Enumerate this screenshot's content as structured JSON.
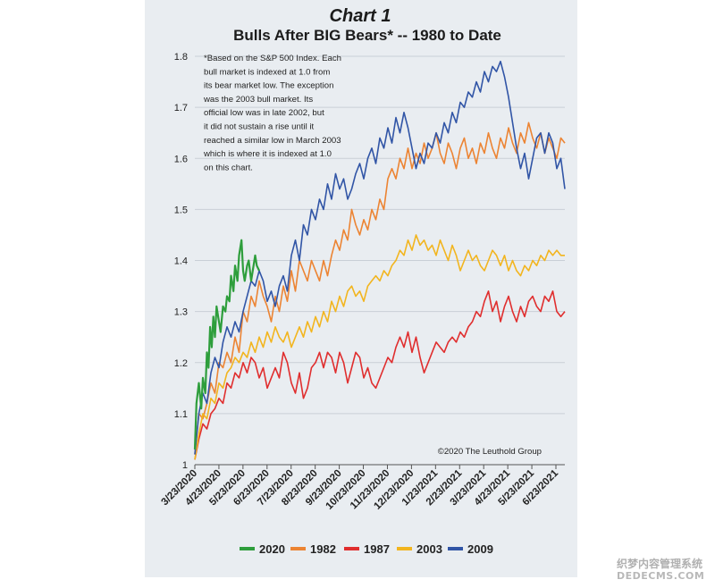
{
  "chart_data": {
    "type": "line",
    "title": "Chart 1",
    "subtitle": "Bulls After BIG Bears* -- 1980 to Date",
    "ylim": [
      1,
      1.8
    ],
    "yticks": [
      "1",
      "1.1",
      "1.2",
      "1.3",
      "1.4",
      "1.5",
      "1.6",
      "1.7",
      "1.8"
    ],
    "x_ticks": [
      "3/23/2020",
      "4/23/2020",
      "5/23/2020",
      "6/23/2020",
      "7/23/2020",
      "8/23/2020",
      "9/23/2020",
      "10/23/2020",
      "11/23/2020",
      "12/23/2020",
      "1/23/2021",
      "2/23/2021",
      "3/23/2021",
      "4/23/2021",
      "5/23/2021",
      "6/23/2021"
    ],
    "grid": "horizontal",
    "legend_position": "bottom",
    "footnote": "*Based on the S&P 500 Index. Each bull market is indexed at 1.0 from its bear market low. The exception was the 2003 bull market. Its official low was in late 2002, but it did not sustain a rise until it reached a similar low in March 2003 which is where it is indexed at 1.0 on this chart.",
    "copyright": "©2020 The Leuthold Group",
    "series": [
      {
        "name": "2020",
        "color": "#2e9e3c",
        "x": [
          0,
          2,
          5,
          8,
          10,
          13,
          15,
          17,
          19,
          21,
          23,
          25,
          27,
          30,
          32,
          35,
          38,
          40,
          43,
          45,
          48,
          50,
          53,
          55,
          58,
          60,
          62,
          65,
          67,
          70,
          72,
          75,
          77,
          80
        ],
        "values": [
          1.03,
          1.12,
          1.16,
          1.11,
          1.17,
          1.14,
          1.22,
          1.19,
          1.27,
          1.23,
          1.29,
          1.25,
          1.31,
          1.28,
          1.26,
          1.31,
          1.3,
          1.33,
          1.32,
          1.37,
          1.34,
          1.39,
          1.36,
          1.41,
          1.44,
          1.38,
          1.36,
          1.39,
          1.4,
          1.36,
          1.38,
          1.41,
          1.39,
          1.38
        ]
      },
      {
        "name": "1982",
        "color": "#ec8433",
        "x": [
          0,
          5,
          10,
          15,
          20,
          25,
          30,
          35,
          40,
          45,
          50,
          55,
          60,
          65,
          70,
          75,
          80,
          85,
          90,
          95,
          100,
          105,
          110,
          115,
          120,
          125,
          130,
          135,
          140,
          145,
          150,
          155,
          160,
          165,
          170,
          175,
          180,
          185,
          190,
          195,
          200,
          205,
          210,
          215,
          220,
          225,
          230,
          235,
          240,
          245,
          250,
          255,
          260,
          265,
          270,
          275,
          280,
          285,
          290,
          295,
          300,
          305,
          310,
          315,
          320,
          325,
          330,
          335,
          340,
          345,
          350,
          355,
          360,
          365,
          370,
          375,
          380,
          385,
          390,
          395,
          400,
          405,
          410,
          415,
          420,
          425,
          430,
          435,
          440,
          445,
          450,
          455,
          460
        ],
        "values": [
          1.02,
          1.1,
          1.09,
          1.12,
          1.16,
          1.14,
          1.2,
          1.19,
          1.22,
          1.2,
          1.25,
          1.22,
          1.3,
          1.28,
          1.33,
          1.31,
          1.36,
          1.33,
          1.31,
          1.28,
          1.33,
          1.3,
          1.35,
          1.32,
          1.38,
          1.34,
          1.4,
          1.38,
          1.36,
          1.4,
          1.38,
          1.36,
          1.4,
          1.37,
          1.41,
          1.44,
          1.42,
          1.46,
          1.44,
          1.5,
          1.47,
          1.45,
          1.48,
          1.46,
          1.5,
          1.48,
          1.52,
          1.5,
          1.56,
          1.58,
          1.56,
          1.6,
          1.58,
          1.62,
          1.58,
          1.61,
          1.59,
          1.63,
          1.6,
          1.62,
          1.65,
          1.61,
          1.59,
          1.63,
          1.61,
          1.58,
          1.62,
          1.64,
          1.6,
          1.62,
          1.59,
          1.63,
          1.61,
          1.65,
          1.62,
          1.6,
          1.64,
          1.62,
          1.66,
          1.63,
          1.61,
          1.65,
          1.63,
          1.67,
          1.64,
          1.62,
          1.65,
          1.61,
          1.64,
          1.62,
          1.6,
          1.64,
          1.63
        ]
      },
      {
        "name": "1987",
        "color": "#e02e2e",
        "x": [
          0,
          5,
          10,
          15,
          20,
          25,
          30,
          35,
          40,
          45,
          50,
          55,
          60,
          65,
          70,
          75,
          80,
          85,
          90,
          95,
          100,
          105,
          110,
          115,
          120,
          125,
          130,
          135,
          140,
          145,
          150,
          155,
          160,
          165,
          170,
          175,
          180,
          185,
          190,
          195,
          200,
          205,
          210,
          215,
          220,
          225,
          230,
          235,
          240,
          245,
          250,
          255,
          260,
          265,
          270,
          275,
          280,
          285,
          290,
          295,
          300,
          305,
          310,
          315,
          320,
          325,
          330,
          335,
          340,
          345,
          350,
          355,
          360,
          365,
          370,
          375,
          380,
          385,
          390,
          395,
          400,
          405,
          410,
          415,
          420,
          425,
          430,
          435,
          440,
          445,
          450,
          455,
          460
        ],
        "values": [
          1.01,
          1.05,
          1.08,
          1.07,
          1.1,
          1.11,
          1.13,
          1.12,
          1.16,
          1.15,
          1.18,
          1.17,
          1.2,
          1.18,
          1.21,
          1.2,
          1.17,
          1.19,
          1.15,
          1.17,
          1.19,
          1.17,
          1.22,
          1.2,
          1.16,
          1.14,
          1.18,
          1.13,
          1.15,
          1.19,
          1.2,
          1.22,
          1.19,
          1.22,
          1.21,
          1.18,
          1.22,
          1.2,
          1.16,
          1.19,
          1.22,
          1.21,
          1.17,
          1.19,
          1.16,
          1.15,
          1.17,
          1.19,
          1.21,
          1.2,
          1.23,
          1.25,
          1.23,
          1.26,
          1.22,
          1.25,
          1.21,
          1.18,
          1.2,
          1.22,
          1.24,
          1.23,
          1.22,
          1.24,
          1.25,
          1.24,
          1.26,
          1.25,
          1.27,
          1.28,
          1.3,
          1.29,
          1.32,
          1.34,
          1.3,
          1.32,
          1.28,
          1.31,
          1.33,
          1.3,
          1.28,
          1.31,
          1.29,
          1.32,
          1.33,
          1.31,
          1.3,
          1.33,
          1.32,
          1.34,
          1.3,
          1.29,
          1.3
        ]
      },
      {
        "name": "2003",
        "color": "#f2b51f",
        "x": [
          0,
          5,
          10,
          15,
          20,
          25,
          30,
          35,
          40,
          45,
          50,
          55,
          60,
          65,
          70,
          75,
          80,
          85,
          90,
          95,
          100,
          105,
          110,
          115,
          120,
          125,
          130,
          135,
          140,
          145,
          150,
          155,
          160,
          165,
          170,
          175,
          180,
          185,
          190,
          195,
          200,
          205,
          210,
          215,
          220,
          225,
          230,
          235,
          240,
          245,
          250,
          255,
          260,
          265,
          270,
          275,
          280,
          285,
          290,
          295,
          300,
          305,
          310,
          315,
          320,
          325,
          330,
          335,
          340,
          345,
          350,
          355,
          360,
          365,
          370,
          375,
          380,
          385,
          390,
          395,
          400,
          405,
          410,
          415,
          420,
          425,
          430,
          435,
          440,
          445,
          450,
          455,
          460
        ],
        "values": [
          1.01,
          1.06,
          1.1,
          1.09,
          1.13,
          1.12,
          1.16,
          1.15,
          1.18,
          1.19,
          1.21,
          1.2,
          1.22,
          1.21,
          1.24,
          1.22,
          1.25,
          1.23,
          1.26,
          1.24,
          1.27,
          1.25,
          1.24,
          1.26,
          1.23,
          1.25,
          1.27,
          1.25,
          1.28,
          1.26,
          1.29,
          1.27,
          1.3,
          1.28,
          1.32,
          1.3,
          1.33,
          1.31,
          1.34,
          1.35,
          1.33,
          1.34,
          1.32,
          1.35,
          1.36,
          1.37,
          1.36,
          1.38,
          1.37,
          1.39,
          1.4,
          1.42,
          1.41,
          1.44,
          1.42,
          1.45,
          1.43,
          1.44,
          1.42,
          1.43,
          1.41,
          1.44,
          1.42,
          1.4,
          1.43,
          1.41,
          1.38,
          1.4,
          1.42,
          1.4,
          1.41,
          1.39,
          1.38,
          1.4,
          1.42,
          1.41,
          1.39,
          1.41,
          1.38,
          1.4,
          1.38,
          1.37,
          1.39,
          1.38,
          1.4,
          1.39,
          1.41,
          1.4,
          1.42,
          1.41,
          1.42,
          1.41,
          1.41
        ]
      },
      {
        "name": "2009",
        "color": "#3155a6",
        "x": [
          0,
          5,
          10,
          15,
          20,
          25,
          30,
          35,
          40,
          45,
          50,
          55,
          60,
          65,
          70,
          75,
          80,
          85,
          90,
          95,
          100,
          105,
          110,
          115,
          120,
          125,
          130,
          135,
          140,
          145,
          150,
          155,
          160,
          165,
          170,
          175,
          180,
          185,
          190,
          195,
          200,
          205,
          210,
          215,
          220,
          225,
          230,
          235,
          240,
          245,
          250,
          255,
          260,
          265,
          270,
          275,
          280,
          285,
          290,
          295,
          300,
          305,
          310,
          315,
          320,
          325,
          330,
          335,
          340,
          345,
          350,
          355,
          360,
          365,
          370,
          375,
          380,
          385,
          390,
          395,
          400,
          405,
          410,
          415,
          420,
          425,
          430,
          435,
          440,
          445,
          450,
          455,
          460
        ],
        "values": [
          1.02,
          1.1,
          1.14,
          1.12,
          1.18,
          1.21,
          1.19,
          1.24,
          1.27,
          1.25,
          1.28,
          1.26,
          1.3,
          1.33,
          1.36,
          1.35,
          1.38,
          1.36,
          1.32,
          1.34,
          1.31,
          1.35,
          1.37,
          1.34,
          1.41,
          1.44,
          1.4,
          1.47,
          1.45,
          1.5,
          1.48,
          1.52,
          1.5,
          1.55,
          1.52,
          1.57,
          1.54,
          1.56,
          1.52,
          1.54,
          1.57,
          1.59,
          1.56,
          1.6,
          1.62,
          1.59,
          1.64,
          1.62,
          1.66,
          1.63,
          1.68,
          1.65,
          1.69,
          1.66,
          1.62,
          1.58,
          1.61,
          1.59,
          1.63,
          1.62,
          1.65,
          1.63,
          1.67,
          1.65,
          1.69,
          1.67,
          1.71,
          1.7,
          1.73,
          1.72,
          1.75,
          1.73,
          1.77,
          1.75,
          1.78,
          1.77,
          1.79,
          1.76,
          1.72,
          1.67,
          1.62,
          1.58,
          1.61,
          1.56,
          1.6,
          1.64,
          1.65,
          1.61,
          1.65,
          1.63,
          1.58,
          1.6,
          1.54
        ]
      }
    ]
  }
}
